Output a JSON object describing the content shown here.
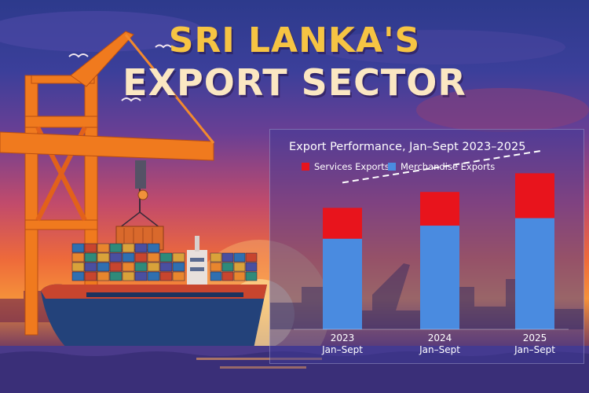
{
  "title": {
    "line1": "SRI LANKA'S",
    "line2": "EXPORT SECTOR"
  },
  "colors": {
    "services": "#e8141c",
    "merchandise": "#4a8be0"
  },
  "chart_data": {
    "type": "bar",
    "stacked": true,
    "title": "Export Performance, Jan–Sept 2023–2025",
    "categories": [
      [
        "2023",
        "Jan–Sept"
      ],
      [
        "2024",
        "Jan–Sept"
      ],
      [
        "2025",
        "Jan–Sept"
      ]
    ],
    "series": [
      {
        "name": "Merchandise Exports",
        "color": "#4a8be0",
        "values": [
          97,
          111,
          119
        ]
      },
      {
        "name": "Services Exports",
        "color": "#e8141c",
        "values": [
          33,
          36,
          48
        ]
      }
    ],
    "legend": [
      "Services Exports",
      "Merchandise Exports"
    ],
    "legend_position": "top-left",
    "trend_line": "dashed upward",
    "ylim": [
      0,
      180
    ],
    "grid": false,
    "xlabel": "",
    "ylabel": ""
  }
}
